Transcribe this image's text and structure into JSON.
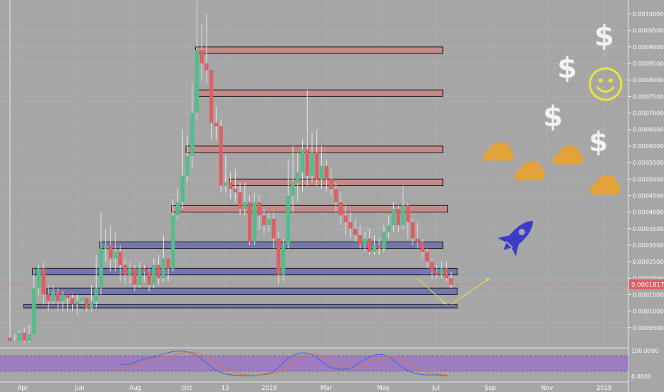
{
  "chart_data": [
    {
      "type": "candlestick",
      "x_ticks": [
        "Apr",
        "Jun",
        "Aug",
        "Oct",
        "13",
        "2018",
        "Mar",
        "May",
        "Jul",
        "Sep",
        "Nov",
        "2019"
      ],
      "y_ticks": [
        "0.00100000",
        "0.00095000",
        "0.00090000",
        "0.00085000",
        "0.00080000",
        "0.00075000",
        "0.00070000",
        "0.00065000",
        "0.00060000",
        "0.00055000",
        "0.00050000",
        "0.00045000",
        "0.00040000",
        "0.00035000",
        "0.00030000",
        "0.00025000",
        "0.00020000",
        "0.00015000",
        "0.00010000",
        "0.00005000"
      ],
      "ylim": [
        0,
        0.00103
      ],
      "last_price": 0.00018176,
      "last_price_label": "0.00018176",
      "colors": {
        "up": "#4fbf8a",
        "down": "#e05d63",
        "resistance_zone": "#c98482",
        "support_zone": "#6a6fae",
        "arrow": "#e8e43c"
      },
      "candles": [
        [
          2e-05,
          1e-05,
          0.00108,
          1e-05
        ],
        [
          1e-05,
          1e-05,
          3e-05,
          5e-06
        ],
        [
          1e-05,
          3.5e-05,
          4e-05,
          8e-06
        ],
        [
          3.5e-05,
          1e-05,
          5e-05,
          5e-06
        ],
        [
          1e-05,
          3e-05,
          6e-05,
          5e-06
        ],
        [
          3e-05,
          0.00017,
          0.00023,
          3e-05
        ],
        [
          0.00017,
          0.00023,
          0.00024,
          0.00015
        ],
        [
          0.00023,
          0.00015,
          0.00025,
          0.00012
        ],
        [
          0.00015,
          0.00013,
          0.00018,
          0.0001
        ],
        [
          0.00013,
          0.00016,
          0.00018,
          0.00012
        ],
        [
          0.00016,
          0.00013,
          0.00017,
          0.0001
        ],
        [
          0.00013,
          0.00015,
          0.00016,
          0.0001
        ],
        [
          0.00015,
          0.00014,
          0.00015,
          0.0001
        ],
        [
          0.00014,
          0.00012,
          0.00015,
          0.0001
        ],
        [
          0.00012,
          0.00013,
          0.00015,
          9e-05
        ],
        [
          0.00013,
          0.00014,
          0.00014,
          0.00012
        ],
        [
          0.00014,
          0.00011,
          0.00014,
          0.0001
        ],
        [
          0.00011,
          0.00013,
          0.00018,
          0.0001
        ],
        [
          0.00013,
          0.00017,
          0.00027,
          0.00011
        ],
        [
          0.00017,
          0.00029,
          0.0004,
          0.00015
        ],
        [
          0.00029,
          0.0003,
          0.00035,
          0.00025
        ],
        [
          0.0003,
          0.00026,
          0.00036,
          0.00022
        ],
        [
          0.00026,
          0.00028,
          0.00034,
          0.00022
        ],
        [
          0.00028,
          0.00024,
          0.0003,
          0.00019
        ],
        [
          0.00024,
          0.00021,
          0.00026,
          0.00018
        ],
        [
          0.00021,
          0.00023,
          0.00025,
          0.00018
        ],
        [
          0.00023,
          0.00018,
          0.00024,
          0.00016
        ],
        [
          0.00018,
          0.00023,
          0.00025,
          0.00017
        ],
        [
          0.00023,
          0.00022,
          0.00024,
          0.00019
        ],
        [
          0.00022,
          0.00018,
          0.00023,
          0.00016
        ],
        [
          0.00018,
          0.00024,
          0.00026,
          0.00017
        ],
        [
          0.00024,
          0.0002,
          0.00027,
          0.00018
        ],
        [
          0.0002,
          0.00026,
          0.00033,
          0.00019
        ],
        [
          0.00026,
          0.00023,
          0.00026,
          0.00019
        ],
        [
          0.00023,
          0.00039,
          0.00044,
          0.00022
        ],
        [
          0.00039,
          0.00043,
          0.00047,
          0.00038
        ],
        [
          0.00043,
          0.00051,
          0.00065,
          0.00041
        ],
        [
          0.00051,
          0.00057,
          0.00063,
          0.00049
        ],
        [
          0.00057,
          0.0007,
          0.00079,
          0.00053
        ],
        [
          0.0007,
          0.00089,
          0.00104,
          0.00068
        ],
        [
          0.00089,
          0.00085,
          0.00097,
          0.0008
        ],
        [
          0.00085,
          0.00083,
          0.001,
          0.00079
        ],
        [
          0.00083,
          0.00067,
          0.00082,
          0.00062
        ],
        [
          0.00067,
          0.00066,
          0.00072,
          0.00062
        ],
        [
          0.00066,
          0.00048,
          0.00068,
          0.00046
        ],
        [
          0.00048,
          0.00049,
          0.00057,
          0.00046
        ],
        [
          0.00049,
          0.00047,
          0.00052,
          0.00044
        ],
        [
          0.00047,
          0.00046,
          0.00053,
          0.00043
        ],
        [
          0.00046,
          0.00041,
          0.00049,
          0.00039
        ],
        [
          0.00041,
          0.00043,
          0.00049,
          0.00039
        ],
        [
          0.00043,
          0.00031,
          0.00045,
          0.0003
        ],
        [
          0.00031,
          0.00043,
          0.00046,
          0.0003
        ],
        [
          0.00043,
          0.00039,
          0.00045,
          0.00035
        ],
        [
          0.00039,
          0.00036,
          0.00041,
          0.00033
        ],
        [
          0.00036,
          0.00038,
          0.0004,
          0.00034
        ],
        [
          0.00038,
          0.00032,
          0.0004,
          0.00029
        ],
        [
          0.00032,
          0.00021,
          0.00034,
          0.00018
        ],
        [
          0.00021,
          0.0003,
          0.00032,
          0.00019
        ],
        [
          0.0003,
          0.00045,
          0.00056,
          0.00029
        ],
        [
          0.00045,
          0.00049,
          0.0006,
          0.0004
        ],
        [
          0.00049,
          0.00052,
          0.00058,
          0.00043
        ],
        [
          0.00052,
          0.00059,
          0.00062,
          0.00046
        ],
        [
          0.00059,
          0.00051,
          0.00077,
          0.00048
        ],
        [
          0.00051,
          0.00058,
          0.00064,
          0.00049
        ],
        [
          0.00058,
          0.0005,
          0.00065,
          0.00048
        ],
        [
          0.0005,
          0.00054,
          0.0006,
          0.00047
        ],
        [
          0.00054,
          0.0005,
          0.00056,
          0.00046
        ],
        [
          0.0005,
          0.00047,
          0.00053,
          0.00045
        ],
        [
          0.00047,
          0.00043,
          0.00049,
          0.0004
        ],
        [
          0.00043,
          0.00039,
          0.00046,
          0.00036
        ],
        [
          0.00039,
          0.00037,
          0.00042,
          0.00033
        ],
        [
          0.00037,
          0.00035,
          0.0004,
          0.00032
        ],
        [
          0.00035,
          0.00033,
          0.00038,
          0.00031
        ],
        [
          0.00033,
          0.0003,
          0.00036,
          0.00029
        ],
        [
          0.0003,
          0.00032,
          0.00034,
          0.00028
        ],
        [
          0.00032,
          0.00028,
          0.00035,
          0.00027
        ],
        [
          0.00028,
          0.0003,
          0.00033,
          0.00027
        ],
        [
          0.0003,
          0.00029,
          0.00032,
          0.00027
        ],
        [
          0.00029,
          0.00034,
          0.00036,
          0.00028
        ],
        [
          0.00034,
          0.00036,
          0.00039,
          0.00032
        ],
        [
          0.00036,
          0.00041,
          0.00043,
          0.00034
        ],
        [
          0.00041,
          0.00036,
          0.00042,
          0.00034
        ],
        [
          0.00036,
          0.00042,
          0.00048,
          0.00035
        ],
        [
          0.00042,
          0.00037,
          0.00043,
          0.00032
        ],
        [
          0.00037,
          0.00032,
          0.00038,
          0.0003
        ],
        [
          0.00032,
          0.00031,
          0.00037,
          0.00029
        ],
        [
          0.00031,
          0.00028,
          0.00032,
          0.00026
        ],
        [
          0.00028,
          0.00025,
          0.00029,
          0.00023
        ],
        [
          0.00025,
          0.00022,
          0.00026,
          0.0002
        ],
        [
          0.00022,
          0.00021,
          0.00024,
          0.0002
        ],
        [
          0.00021,
          0.00023,
          0.00025,
          0.0002
        ],
        [
          0.00023,
          0.0002,
          0.00025,
          0.00019
        ],
        [
          0.0002,
          0.00018,
          0.00022,
          0.00017
        ]
      ],
      "zones": [
        {
          "kind": "resistance",
          "low": 0.00088,
          "high": 0.0009,
          "x_from": 0.0,
          "start_candle": 39,
          "end_candle": 90
        },
        {
          "kind": "resistance",
          "low": 0.00075,
          "high": 0.00077,
          "start_candle": 39,
          "end_candle": 90
        },
        {
          "kind": "resistance",
          "low": 0.00058,
          "high": 0.0006,
          "start_candle": 37,
          "end_candle": 90
        },
        {
          "kind": "resistance",
          "low": 0.00048,
          "high": 0.0005,
          "start_candle": 46,
          "end_candle": 90
        },
        {
          "kind": "resistance",
          "low": 0.0004,
          "high": 0.00042,
          "start_candle": 34,
          "end_candle": 91
        },
        {
          "kind": "support",
          "low": 0.00029,
          "high": 0.00031,
          "start_candle": 19,
          "end_candle": 90
        },
        {
          "kind": "support",
          "low": 0.00021,
          "high": 0.00023,
          "start_candle": 5,
          "end_candle": 93
        },
        {
          "kind": "support",
          "low": 0.00015,
          "high": 0.00017,
          "start_candle": 8,
          "end_candle": 93
        },
        {
          "kind": "support",
          "low": 0.00011,
          "high": 0.00012,
          "start_candle": 2,
          "end_candle": 93
        }
      ],
      "arrows": [
        {
          "from": [
            85,
            0.0002
          ],
          "to": [
            91,
            0.00012
          ]
        },
        {
          "from": [
            92,
            0.00012
          ],
          "to": [
            100,
            0.0002
          ]
        }
      ]
    },
    {
      "type": "line",
      "y_ticks": [
        "100.0000",
        "0.0000"
      ],
      "ylim": [
        0,
        100
      ],
      "band": [
        20,
        80
      ],
      "series": [
        {
          "color": "#3a6be0",
          "values": [
            50,
            45,
            48,
            52,
            60,
            65,
            70,
            75,
            78,
            85,
            90,
            95,
            98,
            99,
            97,
            92,
            85,
            75,
            60,
            45,
            30,
            20,
            12,
            8,
            5,
            4,
            3,
            2,
            2,
            3,
            5,
            8,
            12,
            20,
            35,
            55,
            70,
            80,
            88,
            92,
            90,
            85,
            75,
            60,
            45,
            35,
            30,
            28,
            27,
            30,
            38,
            50,
            62,
            72,
            80,
            85,
            85,
            80,
            70,
            55,
            40,
            28,
            18,
            12,
            8,
            6,
            5,
            6,
            5,
            3,
            2
          ]
        },
        {
          "color": "#e0773a",
          "values": [
            30,
            32,
            35,
            40,
            45,
            50,
            55,
            60,
            65,
            70,
            75,
            80,
            85,
            90,
            93,
            95,
            93,
            88,
            80,
            70,
            58,
            45,
            35,
            25,
            18,
            12,
            8,
            5,
            4,
            4,
            5,
            6,
            8,
            12,
            18,
            28,
            40,
            55,
            68,
            78,
            85,
            88,
            86,
            80,
            70,
            60,
            50,
            42,
            36,
            33,
            33,
            36,
            42,
            50,
            58,
            66,
            72,
            76,
            76,
            72,
            64,
            54,
            44,
            35,
            27,
            20,
            15,
            11,
            8,
            6,
            5
          ]
        }
      ]
    }
  ],
  "decor": {
    "money_symbol": "$",
    "smiley_color": "#e8e43c",
    "cloud_color": "#e3a33a",
    "rocket_color": "#3c3cc8"
  }
}
